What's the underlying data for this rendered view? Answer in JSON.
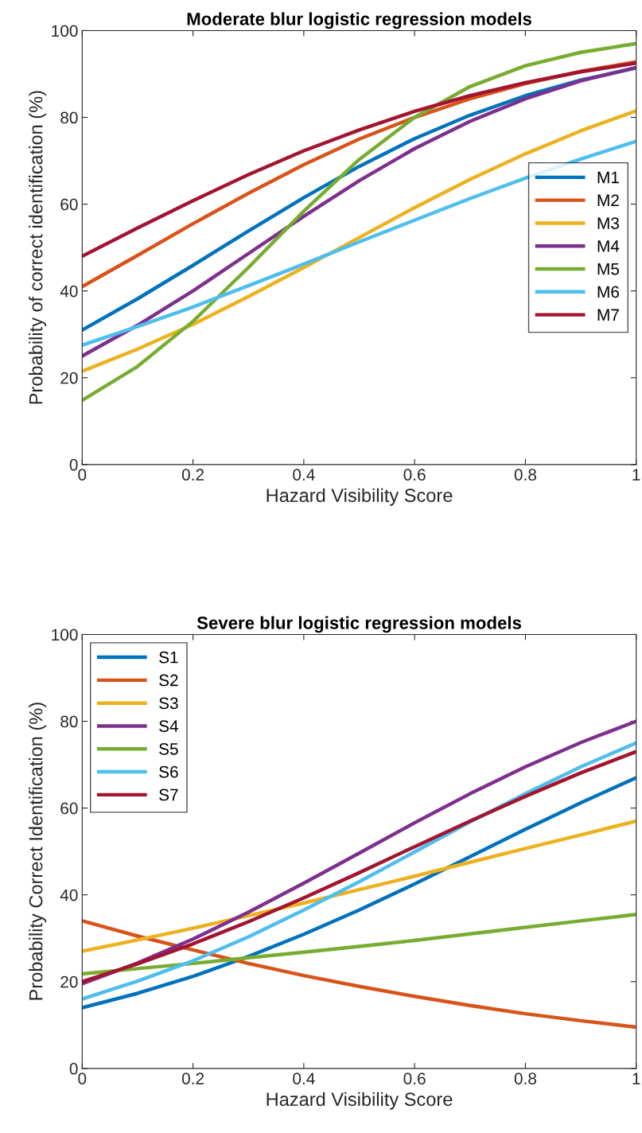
{
  "chart_data": [
    {
      "type": "line",
      "title": "Moderate blur logistic regression models",
      "xlabel": "Hazard Visibility Score",
      "ylabel": "Probability of correct identification (%)",
      "x": [
        0,
        0.1,
        0.2,
        0.3,
        0.4,
        0.5,
        0.6,
        0.7,
        0.8,
        0.9,
        1
      ],
      "series": [
        {
          "name": "M1",
          "color": "#0072bd",
          "values": [
            31.0,
            38.2,
            45.9,
            53.8,
            61.5,
            68.7,
            75.1,
            80.5,
            85.0,
            88.6,
            91.4
          ]
        },
        {
          "name": "M2",
          "color": "#d95319",
          "values": [
            41.0,
            48.2,
            55.5,
            62.5,
            69.1,
            75.0,
            80.0,
            84.3,
            87.8,
            90.6,
            92.8
          ]
        },
        {
          "name": "M3",
          "color": "#edb120",
          "values": [
            21.5,
            26.6,
            32.3,
            38.7,
            45.4,
            52.3,
            59.2,
            65.7,
            71.6,
            76.9,
            81.5
          ]
        },
        {
          "name": "M4",
          "color": "#7e2f8e",
          "values": [
            25.0,
            32.1,
            40.0,
            48.6,
            57.2,
            65.4,
            72.8,
            79.1,
            84.3,
            88.4,
            91.5
          ]
        },
        {
          "name": "M5",
          "color": "#77ac30",
          "values": [
            14.8,
            22.6,
            33.0,
            45.4,
            58.4,
            70.3,
            80.0,
            87.1,
            91.9,
            95.0,
            97.0
          ]
        },
        {
          "name": "M6",
          "color": "#4dbeee",
          "values": [
            27.5,
            31.8,
            36.3,
            41.2,
            46.2,
            51.3,
            56.3,
            61.3,
            66.0,
            70.4,
            74.5
          ]
        },
        {
          "name": "M7",
          "color": "#a2142f",
          "values": [
            48.0,
            54.5,
            60.8,
            66.8,
            72.3,
            77.1,
            81.4,
            85.0,
            88.0,
            90.5,
            92.5
          ]
        }
      ],
      "xlim": [
        0,
        1
      ],
      "xticks": [
        0,
        0.2,
        0.4,
        0.6,
        0.8,
        1
      ],
      "ylim": [
        0,
        100
      ],
      "yticks": [
        0,
        20,
        40,
        60,
        80,
        100
      ],
      "grid": false,
      "legend": "right",
      "marker": "none",
      "line_style": "solid"
    },
    {
      "type": "line",
      "title": "Severe blur logistic regression models",
      "xlabel": "Hazard Visibility Score",
      "ylabel": "Probability Correct Identification (%)",
      "x": [
        0,
        0.1,
        0.2,
        0.3,
        0.4,
        0.5,
        0.6,
        0.7,
        0.8,
        0.9,
        1
      ],
      "series": [
        {
          "name": "S1",
          "color": "#0072bd",
          "values": [
            14.0,
            17.3,
            21.2,
            25.8,
            30.9,
            36.5,
            42.5,
            48.8,
            55.1,
            61.2,
            67.0
          ]
        },
        {
          "name": "S2",
          "color": "#d95319",
          "values": [
            34.0,
            30.5,
            27.3,
            24.2,
            21.4,
            18.9,
            16.6,
            14.5,
            12.6,
            11.0,
            9.5
          ]
        },
        {
          "name": "S3",
          "color": "#edb120",
          "values": [
            27.0,
            29.6,
            32.3,
            35.2,
            38.1,
            41.2,
            44.3,
            47.5,
            50.7,
            53.8,
            57.0
          ]
        },
        {
          "name": "S4",
          "color": "#7e2f8e",
          "values": [
            19.5,
            24.3,
            29.8,
            36.0,
            42.7,
            49.6,
            56.6,
            63.3,
            69.5,
            75.1,
            80.0
          ]
        },
        {
          "name": "S5",
          "color": "#77ac30",
          "values": [
            21.8,
            23.0,
            24.2,
            25.5,
            26.8,
            28.1,
            29.5,
            31.0,
            32.5,
            34.0,
            35.5
          ]
        },
        {
          "name": "S6",
          "color": "#4dbeee",
          "values": [
            16.0,
            20.1,
            24.8,
            30.3,
            36.5,
            43.0,
            49.9,
            56.8,
            63.3,
            69.5,
            75.0
          ]
        },
        {
          "name": "S7",
          "color": "#a2142f",
          "values": [
            20.0,
            24.1,
            28.7,
            33.8,
            39.3,
            45.1,
            51.1,
            57.0,
            62.7,
            68.1,
            73.0
          ]
        }
      ],
      "xlim": [
        0,
        1
      ],
      "xticks": [
        0,
        0.2,
        0.4,
        0.6,
        0.8,
        1
      ],
      "ylim": [
        0,
        100
      ],
      "yticks": [
        0,
        20,
        40,
        60,
        80,
        100
      ],
      "grid": false,
      "legend": "upper left",
      "marker": "none",
      "line_style": "solid"
    }
  ]
}
